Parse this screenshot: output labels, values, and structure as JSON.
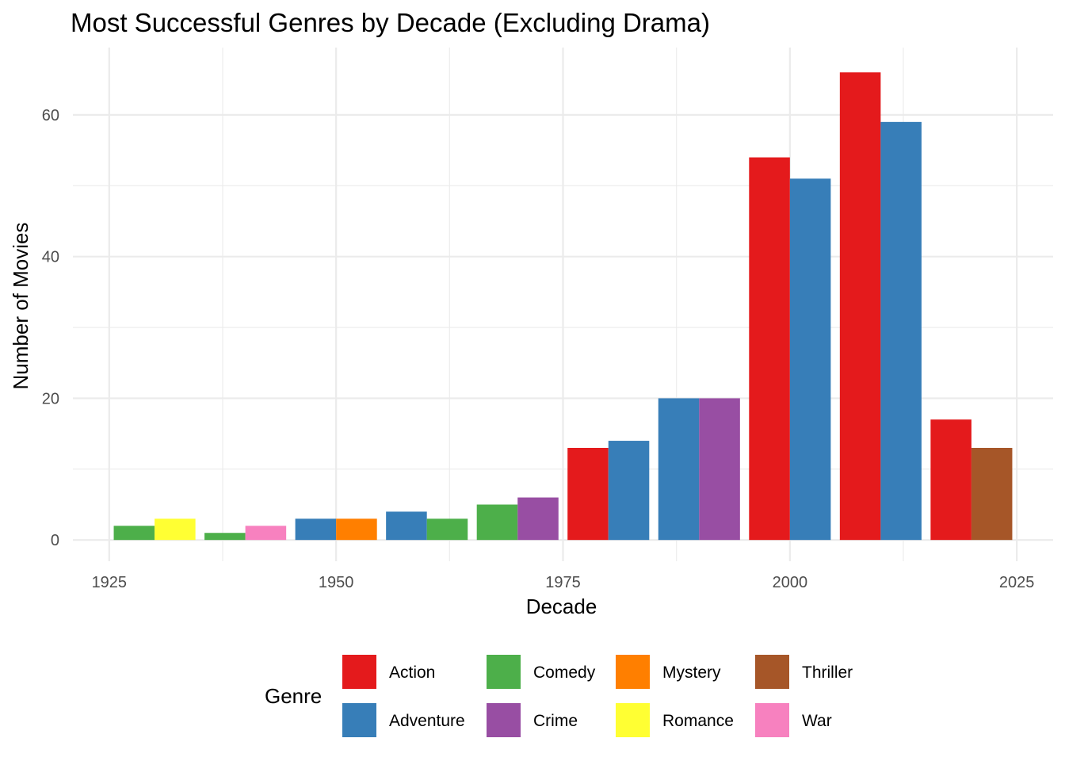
{
  "chart_data": {
    "type": "bar",
    "title": "Most Successful Genres by Decade (Excluding Drama)",
    "xlabel": "Decade",
    "ylabel": "Number of Movies",
    "xlim": [
      1921,
      2029
    ],
    "ylim": [
      -3,
      69.5
    ],
    "x_ticks": [
      1925,
      1950,
      1975,
      2000,
      2025
    ],
    "y_ticks": [
      0,
      20,
      40,
      60
    ],
    "bar_group_width": 9,
    "grid": true,
    "legend_title": "Genre",
    "legend_position": "bottom",
    "genres": [
      {
        "name": "Action",
        "color": "#E41A1C"
      },
      {
        "name": "Adventure",
        "color": "#377EB8"
      },
      {
        "name": "Comedy",
        "color": "#4DAF4A"
      },
      {
        "name": "Crime",
        "color": "#984EA3"
      },
      {
        "name": "Mystery",
        "color": "#FF7F00"
      },
      {
        "name": "Romance",
        "color": "#FFFF33"
      },
      {
        "name": "Thriller",
        "color": "#A65628"
      },
      {
        "name": "War",
        "color": "#F781BF"
      }
    ],
    "decades": [
      {
        "decade": 1930,
        "bars": [
          {
            "genre": "Comedy",
            "value": 2
          },
          {
            "genre": "Romance",
            "value": 3
          }
        ]
      },
      {
        "decade": 1940,
        "bars": [
          {
            "genre": "Comedy",
            "value": 1
          },
          {
            "genre": "War",
            "value": 2
          }
        ]
      },
      {
        "decade": 1950,
        "bars": [
          {
            "genre": "Adventure",
            "value": 3
          },
          {
            "genre": "Mystery",
            "value": 3
          }
        ]
      },
      {
        "decade": 1960,
        "bars": [
          {
            "genre": "Adventure",
            "value": 4
          },
          {
            "genre": "Comedy",
            "value": 3
          }
        ]
      },
      {
        "decade": 1970,
        "bars": [
          {
            "genre": "Comedy",
            "value": 5
          },
          {
            "genre": "Crime",
            "value": 6
          }
        ]
      },
      {
        "decade": 1980,
        "bars": [
          {
            "genre": "Action",
            "value": 13
          },
          {
            "genre": "Adventure",
            "value": 14
          }
        ]
      },
      {
        "decade": 1990,
        "bars": [
          {
            "genre": "Adventure",
            "value": 20
          },
          {
            "genre": "Crime",
            "value": 20
          }
        ]
      },
      {
        "decade": 2000,
        "bars": [
          {
            "genre": "Action",
            "value": 54
          },
          {
            "genre": "Adventure",
            "value": 51
          }
        ]
      },
      {
        "decade": 2010,
        "bars": [
          {
            "genre": "Action",
            "value": 66
          },
          {
            "genre": "Adventure",
            "value": 59
          }
        ]
      },
      {
        "decade": 2020,
        "bars": [
          {
            "genre": "Action",
            "value": 17
          },
          {
            "genre": "Thriller",
            "value": 13
          }
        ]
      }
    ]
  }
}
